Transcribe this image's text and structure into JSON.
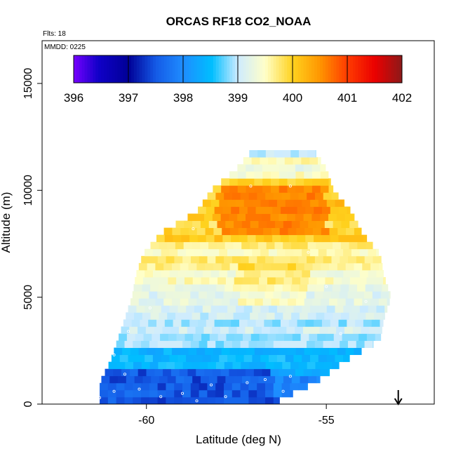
{
  "chart_data": {
    "type": "heatmap",
    "title": "ORCAS RF18 CO2_NOAA",
    "notes": [
      "Flts: 18",
      "MMDD: 0225"
    ],
    "xlabel": "Latitude (deg N)",
    "ylabel": "Altitude (m)",
    "xlim": [
      -62.9,
      -52.0
    ],
    "ylim": [
      0,
      17000
    ],
    "x_ticks": [
      -60,
      -55
    ],
    "y_ticks": [
      0,
      5000,
      10000,
      15000
    ],
    "colorbar": {
      "min": 396,
      "max": 402,
      "ticks": [
        396,
        397,
        398,
        399,
        400,
        401,
        402
      ],
      "placement": "top-inside"
    },
    "cell_width_deg": 0.23,
    "cell_height_m": 330,
    "altitude_profile_extent": [
      {
        "altitude": 200,
        "lat_min": -61.3,
        "lat_max": -56.3,
        "co2": 397.7
      },
      {
        "altitude": 1000,
        "lat_min": -61.3,
        "lat_max": -55.3,
        "co2": 397.9
      },
      {
        "altitude": 2000,
        "lat_min": -61.0,
        "lat_max": -54.5,
        "co2": 398.3
      },
      {
        "altitude": 3000,
        "lat_min": -60.8,
        "lat_max": -53.5,
        "co2": 398.8
      },
      {
        "altitude": 4000,
        "lat_min": -60.6,
        "lat_max": -53.4,
        "co2": 399.1
      },
      {
        "altitude": 5000,
        "lat_min": -60.4,
        "lat_max": -53.2,
        "co2": 399.3
      },
      {
        "altitude": 6000,
        "lat_min": -60.3,
        "lat_max": -53.4,
        "co2": 399.5
      },
      {
        "altitude": 7000,
        "lat_min": -60.1,
        "lat_max": -53.5,
        "co2": 399.6
      },
      {
        "altitude": 8000,
        "lat_min": -59.6,
        "lat_max": -54.0,
        "co2": 399.9
      },
      {
        "altitude": 9000,
        "lat_min": -58.6,
        "lat_max": -54.3,
        "co2": 400.1
      },
      {
        "altitude": 10000,
        "lat_min": -58.2,
        "lat_max": -54.8,
        "co2": 400.0
      },
      {
        "altitude": 11000,
        "lat_min": -57.5,
        "lat_max": -55.0,
        "co2": 399.5
      },
      {
        "altitude": 12000,
        "lat_min": -57.0,
        "lat_max": -55.4,
        "co2": 399.0
      }
    ],
    "features": [
      {
        "description": "high-CO2 core",
        "lat_range": [
          -58.0,
          -55.0
        ],
        "alt_range": [
          7800,
          10200
        ],
        "co2": 400.6
      },
      {
        "description": "low-CO2 boundary layer",
        "lat_range": [
          -61.3,
          -56.5
        ],
        "alt_range": [
          0,
          1600
        ],
        "co2": 397.5
      }
    ],
    "flight_track": [
      {
        "lat": -61.3,
        "alt": 300
      },
      {
        "lat": -60.9,
        "alt": 600
      },
      {
        "lat": -60.6,
        "alt": 1400
      },
      {
        "lat": -60.2,
        "alt": 700
      },
      {
        "lat": -59.6,
        "alt": 350
      },
      {
        "lat": -59.0,
        "alt": 500
      },
      {
        "lat": -58.6,
        "alt": 150
      },
      {
        "lat": -58.2,
        "alt": 900
      },
      {
        "lat": -57.8,
        "alt": 350
      },
      {
        "lat": -57.2,
        "alt": 1000
      },
      {
        "lat": -56.7,
        "alt": 1150
      },
      {
        "lat": -56.2,
        "alt": 600
      },
      {
        "lat": -56.0,
        "alt": 1300
      },
      {
        "lat": -60.9,
        "alt": 2300
      },
      {
        "lat": -60.5,
        "alt": 3400
      },
      {
        "lat": -59.9,
        "alt": 4500
      },
      {
        "lat": -58.7,
        "alt": 8200
      },
      {
        "lat": -57.1,
        "alt": 10200
      },
      {
        "lat": -56.0,
        "alt": 10200
      },
      {
        "lat": -55.5,
        "alt": 7100
      },
      {
        "lat": -55.0,
        "alt": 5500
      },
      {
        "lat": -54.6,
        "alt": 3300
      },
      {
        "lat": -53.9,
        "alt": 4800
      },
      {
        "lat": -57.0,
        "alt": 12300
      },
      {
        "lat": -56.0,
        "alt": 12400
      },
      {
        "lat": -55.3,
        "alt": 12200
      }
    ],
    "marker": {
      "type": "down-arrow",
      "lat": -53.0
    }
  }
}
